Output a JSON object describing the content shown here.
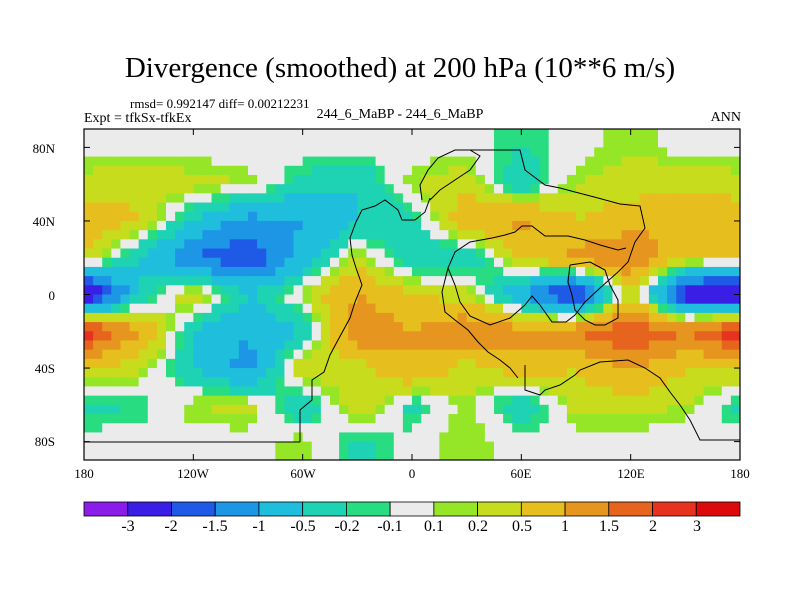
{
  "chart_data": {
    "type": "heatmap",
    "title": "Divergence (smoothed) at 200 hPa (10**6 m/s)",
    "rmsd_text": "rmsd= 0.992147 diff= 0.00212231",
    "expt_text": "Expt = tfkSx-tfkEx",
    "case_text": "244_6_MaBP - 244_6_MaBP",
    "season": "ANN",
    "xlim": [
      -180,
      180
    ],
    "ylim": [
      -90,
      90
    ],
    "x_ticks": [
      -180,
      -120,
      -60,
      0,
      60,
      120,
      180
    ],
    "x_tick_labels": [
      "180",
      "120W",
      "60W",
      "0",
      "60E",
      "120E",
      "180"
    ],
    "y_ticks": [
      80,
      40,
      0,
      -40,
      -80
    ],
    "y_tick_labels": [
      "80N",
      "40N",
      "0",
      "40S",
      "80S"
    ],
    "contour_levels": [
      -3,
      -2,
      -1.5,
      -1,
      -0.5,
      -0.2,
      -0.1,
      0.1,
      0.2,
      0.5,
      1,
      1.5,
      2,
      3
    ],
    "colorbar_labels": [
      "-3",
      "-2",
      "-1.5",
      "-1",
      "-0.5",
      "-0.2",
      "-0.1",
      "0.1",
      "0.2",
      "0.5",
      "1",
      "1.5",
      "2",
      "3"
    ],
    "level_colors": [
      "#8a1ee8",
      "#3a1ee6",
      "#1e5ae6",
      "#1e96e6",
      "#1ebedc",
      "#1ed2b4",
      "#28dc82",
      "#ebebeb",
      "#96e628",
      "#c8dc1e",
      "#e6be1e",
      "#e6961e",
      "#e6641e",
      "#e6321e",
      "#dc0a0a"
    ],
    "field_grid": {
      "lon_step_deg": 30,
      "lat_step_deg": 20,
      "lat_rows_north_to_south": [
        80,
        60,
        40,
        20,
        0,
        -20,
        -40,
        -60,
        -80
      ],
      "values_lon_minus180_to_180": [
        [
          0,
          0,
          0,
          0,
          0,
          0,
          0,
          0,
          -0.2,
          0,
          0.2,
          0,
          0
        ],
        [
          0.3,
          0.4,
          0.3,
          0.2,
          -0.3,
          -0.5,
          0.2,
          0.4,
          -0.5,
          0.2,
          0.3,
          0.4,
          0.3
        ],
        [
          0.8,
          0.5,
          -0.5,
          -1.2,
          -1.0,
          -0.5,
          -0.3,
          0.8,
          1.2,
          0.5,
          0.8,
          1.0,
          0.8
        ],
        [
          0.5,
          -0.5,
          -1.5,
          -2.0,
          -0.8,
          0.3,
          -0.5,
          -0.5,
          0.5,
          1.2,
          1.5,
          0.5,
          0.5
        ],
        [
          -3.0,
          -0.5,
          0.5,
          -0.5,
          0.2,
          1.0,
          0.5,
          0.3,
          -1.0,
          -2.5,
          0.5,
          -2.5,
          -3.0
        ],
        [
          2.5,
          1.0,
          -0.5,
          -1.0,
          -0.5,
          1.5,
          1.0,
          1.5,
          1.2,
          1.5,
          2.0,
          1.5,
          2.5
        ],
        [
          0.5,
          0.3,
          -0.5,
          -1.2,
          0.5,
          0.3,
          1.0,
          0.3,
          0.8,
          0.5,
          1.0,
          0.5,
          0.5
        ],
        [
          -0.3,
          -0.2,
          0.2,
          0.3,
          -0.5,
          0.5,
          -0.3,
          0.2,
          -0.5,
          0.3,
          0.3,
          0.2,
          -0.3
        ],
        [
          0,
          0,
          0,
          0,
          0.2,
          -0.3,
          0,
          0.2,
          0,
          0,
          0,
          0,
          0
        ]
      ]
    }
  },
  "colors": {
    "land_outline": "#000000",
    "frame": "#000000",
    "background": "#ffffff"
  }
}
